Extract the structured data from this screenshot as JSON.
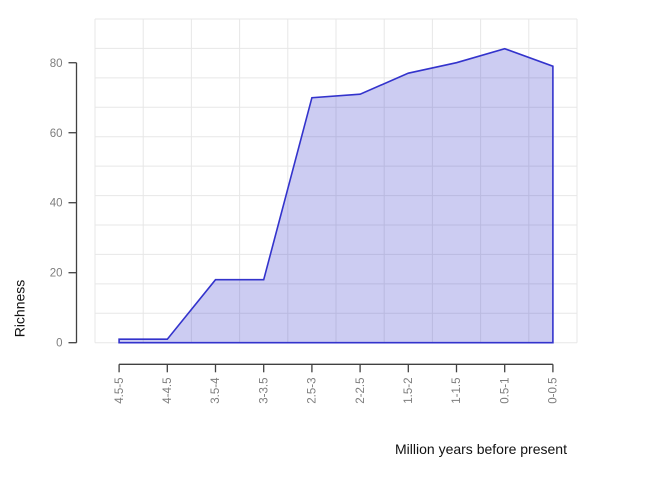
{
  "chart_data": {
    "type": "area",
    "title": "",
    "xlabel": "Million years before present",
    "ylabel": "Richness",
    "categories": [
      "4.5-5",
      "4-4.5",
      "3.5-4",
      "3-3.5",
      "2.5-3",
      "2-2.5",
      "1.5-2",
      "1-1.5",
      "0.5-1",
      "0-0.5"
    ],
    "values": [
      1,
      1,
      18,
      18,
      70,
      71,
      77,
      80,
      84,
      79
    ],
    "yticks": [
      0,
      20,
      40,
      60,
      80
    ],
    "ylim": [
      0,
      92.5
    ],
    "baseline": 0,
    "grid": "on",
    "legend": "none",
    "colors": {
      "line": "#3333cc",
      "fill": "#3333cc",
      "fill_opacity": 0.25,
      "grid": "#e7e7e7",
      "axis": "#404040",
      "tick_label": "#7e7e7e",
      "title_text": "#111111",
      "background": "#ffffff"
    }
  }
}
